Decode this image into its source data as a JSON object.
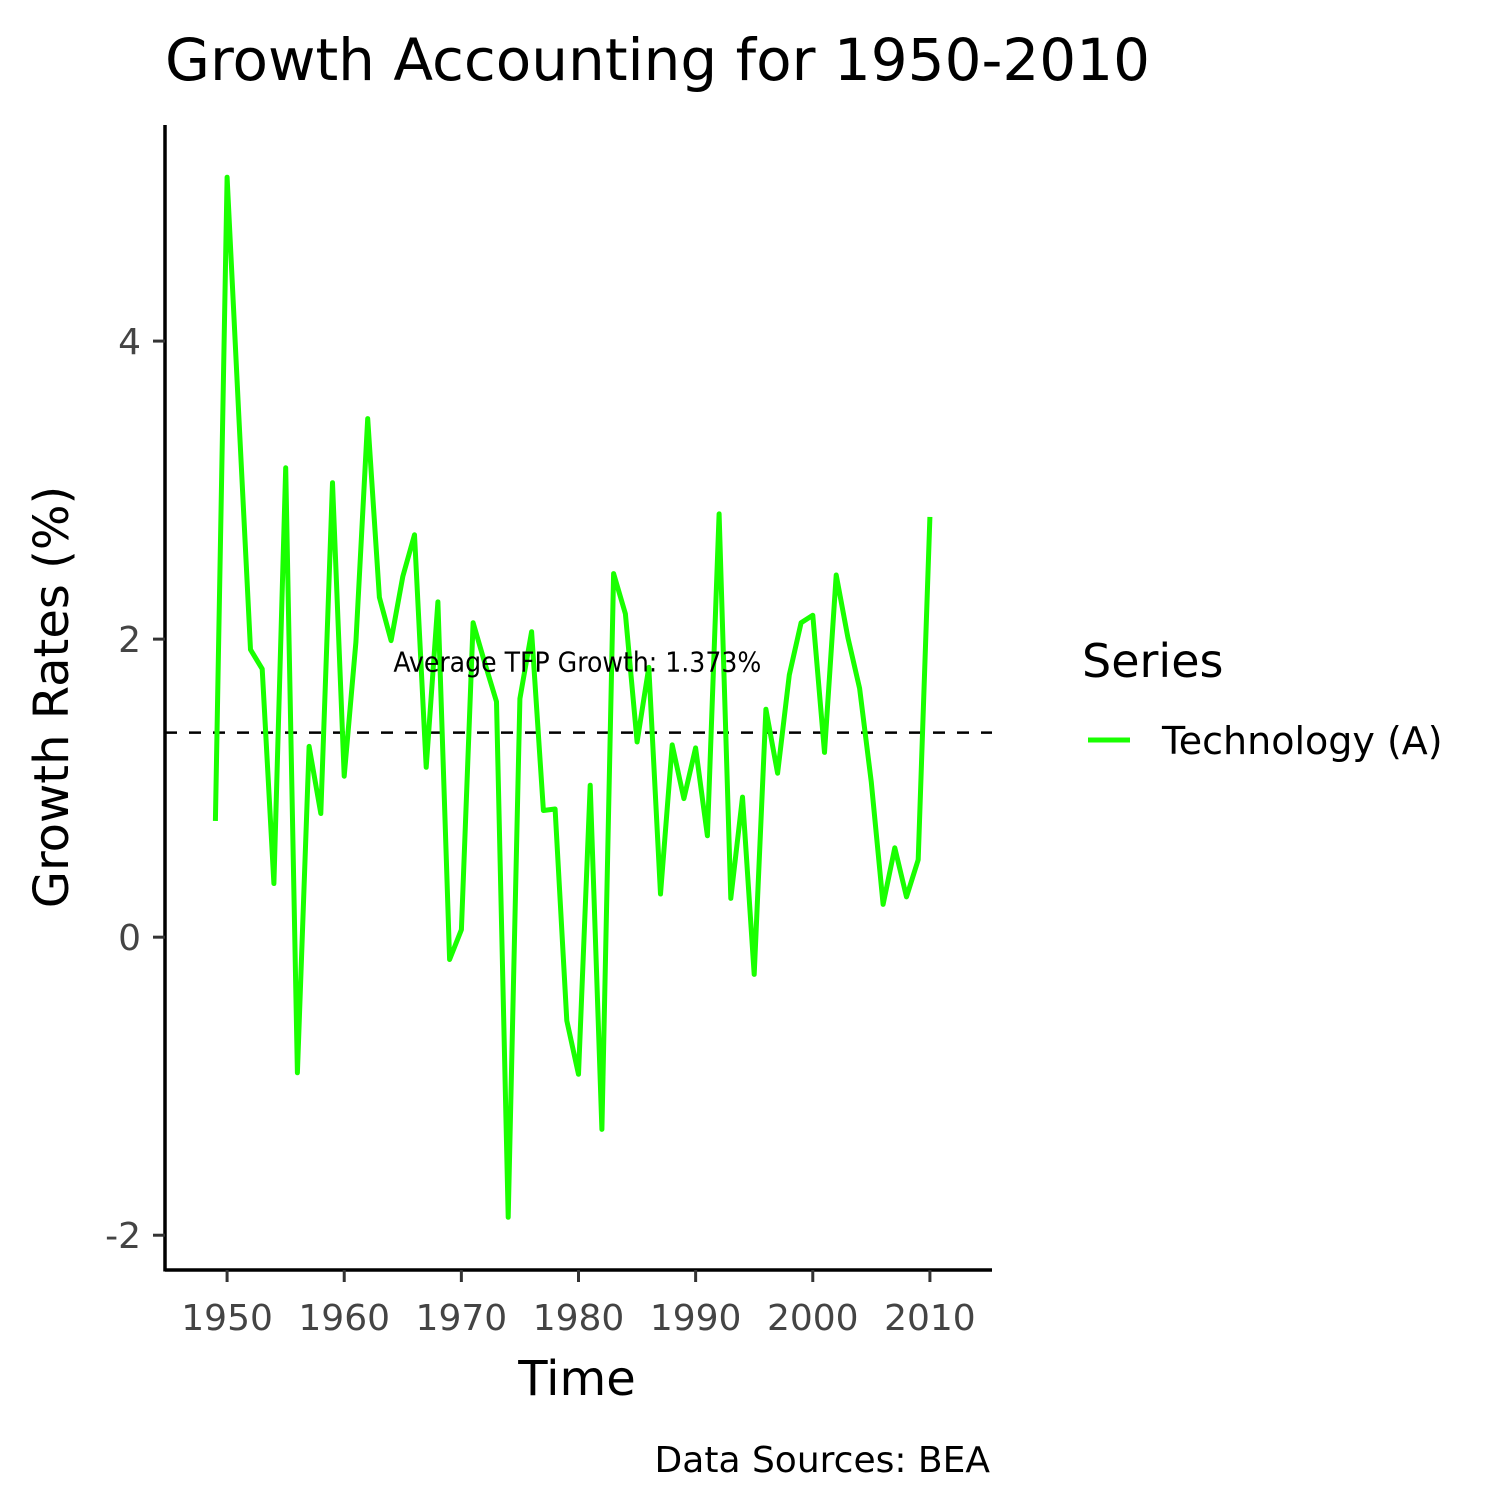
{
  "chart_data": {
    "type": "line",
    "title": "Growth Accounting for 1950-2010",
    "xlabel": "Time",
    "ylabel": "Growth Rates (%)",
    "caption": "Data Sources: BEA",
    "xlim": [
      1944.7,
      2015.3
    ],
    "ylim": [
      -2.22,
      5.45
    ],
    "x_ticks": [
      1950,
      1960,
      1970,
      1980,
      1990,
      2000,
      2010
    ],
    "y_ticks": [
      -2,
      0,
      2,
      4
    ],
    "x_tick_labels": [
      "1950",
      "1960",
      "1970",
      "1980",
      "1990",
      "2000",
      "2010"
    ],
    "y_tick_labels": [
      "-2",
      "0",
      "2",
      "4"
    ],
    "grid": false,
    "legend": {
      "title": "Series",
      "position": "right",
      "entries": [
        "Technology (A)"
      ]
    },
    "reference_line": {
      "y": 1.373,
      "style": "dashed",
      "color": "#000000",
      "label": "Average TFP Growth: 1.373%",
      "label_x": 1979.9,
      "label_y": 1.85
    },
    "series": [
      {
        "name": "Technology (A)",
        "color": "#19ff00",
        "x": [
          1949,
          1950,
          1951,
          1952,
          1953,
          1954,
          1955,
          1956,
          1957,
          1958,
          1959,
          1960,
          1961,
          1962,
          1963,
          1964,
          1965,
          1966,
          1967,
          1968,
          1969,
          1970,
          1971,
          1972,
          1973,
          1974,
          1975,
          1976,
          1977,
          1978,
          1979,
          1980,
          1981,
          1982,
          1983,
          1984,
          1985,
          1986,
          1987,
          1988,
          1989,
          1990,
          1991,
          1992,
          1993,
          1994,
          1995,
          1996,
          1997,
          1998,
          1999,
          2000,
          2001,
          2002,
          2003,
          2004,
          2005,
          2006,
          2007,
          2008,
          2009,
          2010
        ],
        "values": [
          0.78,
          5.1,
          3.5,
          1.93,
          1.8,
          0.36,
          3.15,
          -0.91,
          1.28,
          0.83,
          3.05,
          1.08,
          1.98,
          3.48,
          2.28,
          1.99,
          2.42,
          2.7,
          1.14,
          2.25,
          -0.15,
          0.05,
          2.11,
          1.84,
          1.58,
          -1.88,
          1.6,
          2.05,
          0.85,
          0.86,
          -0.56,
          -0.92,
          1.02,
          -1.29,
          2.44,
          2.17,
          1.31,
          1.81,
          0.29,
          1.29,
          0.93,
          1.27,
          0.68,
          2.84,
          0.26,
          0.94,
          -0.25,
          1.53,
          1.1,
          1.76,
          2.11,
          2.16,
          1.24,
          2.43,
          2.01,
          1.67,
          1.04,
          0.22,
          0.6,
          0.27,
          0.52,
          2.82
        ]
      }
    ]
  }
}
